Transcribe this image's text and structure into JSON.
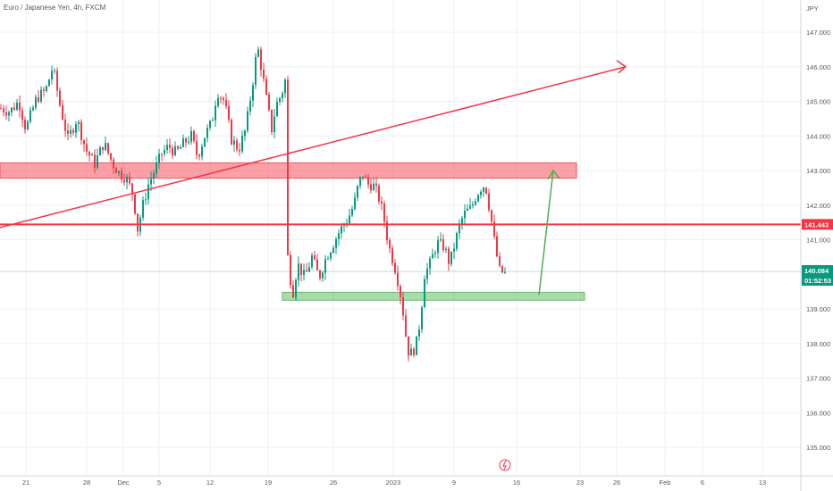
{
  "title": "Euro / Japanese Yen, 4h, FXCM",
  "chart_data": {
    "type": "candlestick",
    "title": "Euro / Japanese Yen, 4h, FXCM",
    "currency": "JPY",
    "ylim": [
      134.6,
      147.6
    ],
    "y_ticks": [
      "147.000",
      "146.000",
      "145.000",
      "144.000",
      "143.000",
      "142.000",
      "141.000",
      "139.000",
      "138.000",
      "137.000",
      "136.000",
      "135.000"
    ],
    "x_ticks": [
      "21",
      "28",
      "Dec",
      "5",
      "12",
      "19",
      "26",
      "2023",
      "9",
      "16",
      "23",
      "26",
      "Feb",
      "6",
      "13"
    ],
    "price_labels": [
      {
        "text": "141.443",
        "value": 141.443,
        "color": "#f23645"
      },
      {
        "text": "140.084",
        "value": 140.084,
        "color": "#089981"
      },
      {
        "text": "01:52:53",
        "value": 139.8,
        "color": "#089981"
      }
    ],
    "last_price": 140.084,
    "zones": [
      {
        "name": "resistance-zone",
        "y_range": [
          142.78,
          143.22
        ],
        "color": "#f7525f"
      },
      {
        "name": "support-zone",
        "y_range": [
          139.25,
          139.48
        ],
        "color": "#66bb6a"
      }
    ],
    "levels": [
      {
        "name": "horizontal-level",
        "value": 141.443,
        "color": "#f23645"
      }
    ],
    "trendline": {
      "from_price": 141.35,
      "to_price": 146.0,
      "color": "#f23645"
    },
    "projection_arrow": {
      "from_price": 139.4,
      "to_price": 143.0,
      "color": "#4caf50"
    },
    "path": [
      [
        0,
        144.8
      ],
      [
        10,
        144.7
      ],
      [
        20,
        145.0
      ],
      [
        28,
        144.2
      ],
      [
        40,
        145.1
      ],
      [
        50,
        145.3
      ],
      [
        58,
        146.0
      ],
      [
        66,
        144.9
      ],
      [
        75,
        143.9
      ],
      [
        85,
        144.5
      ],
      [
        95,
        143.6
      ],
      [
        105,
        143.2
      ],
      [
        115,
        143.8
      ],
      [
        125,
        143.2
      ],
      [
        133,
        142.9
      ],
      [
        140,
        142.8
      ],
      [
        148,
        142.3
      ],
      [
        153,
        141.3
      ],
      [
        158,
        141.9
      ],
      [
        165,
        142.6
      ],
      [
        172,
        143.0
      ],
      [
        180,
        143.5
      ],
      [
        188,
        143.7
      ],
      [
        196,
        143.5
      ],
      [
        205,
        143.8
      ],
      [
        213,
        144.0
      ],
      [
        220,
        143.4
      ],
      [
        228,
        144.0
      ],
      [
        236,
        144.4
      ],
      [
        242,
        145.3
      ],
      [
        250,
        145.0
      ],
      [
        258,
        143.9
      ],
      [
        266,
        143.6
      ],
      [
        274,
        144.2
      ],
      [
        282,
        145.6
      ],
      [
        287,
        146.6
      ],
      [
        292,
        145.9
      ],
      [
        298,
        144.9
      ],
      [
        303,
        144.2
      ],
      [
        308,
        144.9
      ],
      [
        314,
        145.2
      ],
      [
        318,
        145.6
      ],
      [
        319,
        141.3
      ],
      [
        322,
        140.1
      ],
      [
        327,
        139.5
      ],
      [
        332,
        140.3
      ],
      [
        340,
        139.9
      ],
      [
        348,
        140.5
      ],
      [
        356,
        139.9
      ],
      [
        364,
        140.5
      ],
      [
        372,
        140.9
      ],
      [
        380,
        141.3
      ],
      [
        388,
        141.6
      ],
      [
        395,
        142.0
      ],
      [
        400,
        142.6
      ],
      [
        405,
        142.9
      ],
      [
        410,
        142.6
      ],
      [
        416,
        142.6
      ],
      [
        422,
        142.3
      ],
      [
        428,
        141.7
      ],
      [
        434,
        140.8
      ],
      [
        440,
        140.3
      ],
      [
        446,
        139.6
      ],
      [
        450,
        138.9
      ],
      [
        455,
        137.8
      ],
      [
        460,
        137.7
      ],
      [
        466,
        138.1
      ],
      [
        470,
        138.9
      ],
      [
        474,
        140.0
      ],
      [
        480,
        140.3
      ],
      [
        488,
        140.9
      ],
      [
        496,
        140.8
      ],
      [
        502,
        140.3
      ],
      [
        508,
        140.9
      ],
      [
        514,
        141.5
      ],
      [
        520,
        141.8
      ],
      [
        526,
        141.9
      ],
      [
        532,
        142.3
      ],
      [
        537,
        142.5
      ],
      [
        542,
        142.6
      ],
      [
        548,
        141.7
      ],
      [
        553,
        140.8
      ],
      [
        558,
        140.1
      ],
      [
        565,
        140.0
      ]
    ]
  }
}
